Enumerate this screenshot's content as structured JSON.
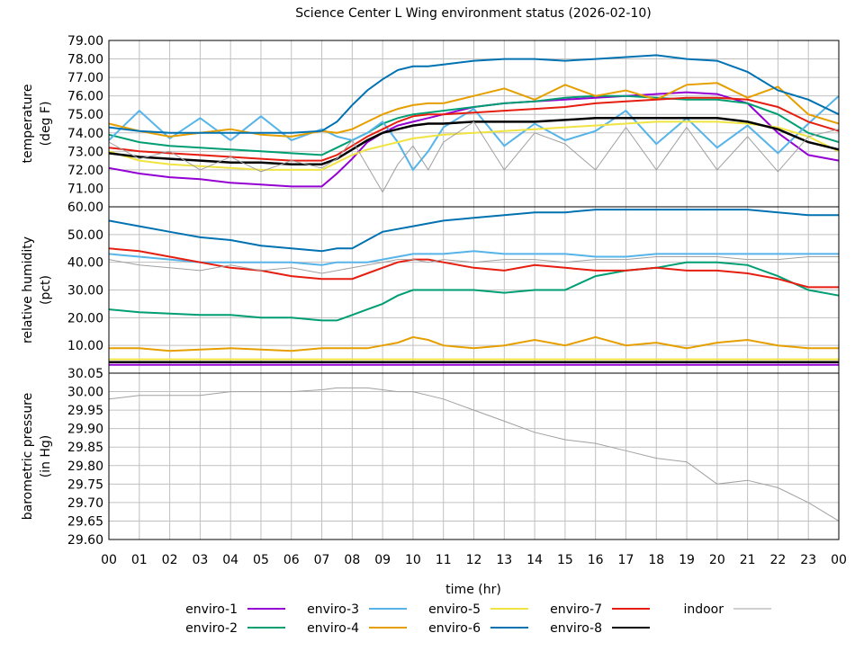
{
  "title": "Science Center L Wing environment status (2026-02-10)",
  "xlabel": "time (hr)",
  "x_ticks": [
    "00",
    "01",
    "02",
    "03",
    "04",
    "05",
    "06",
    "07",
    "08",
    "09",
    "10",
    "11",
    "12",
    "13",
    "14",
    "15",
    "16",
    "17",
    "18",
    "19",
    "20",
    "21",
    "22",
    "23",
    "00"
  ],
  "legend": [
    {
      "name": "enviro-1",
      "color": "#9400d3"
    },
    {
      "name": "enviro-2",
      "color": "#009e73"
    },
    {
      "name": "enviro-3",
      "color": "#56b4e9"
    },
    {
      "name": "enviro-4",
      "color": "#e69f00"
    },
    {
      "name": "enviro-5",
      "color": "#f0e442"
    },
    {
      "name": "enviro-6",
      "color": "#0072b2"
    },
    {
      "name": "enviro-7",
      "color": "#e51e10"
    },
    {
      "name": "enviro-8",
      "color": "#000000"
    },
    {
      "name": "indoor",
      "color": "#a0a0a0"
    }
  ],
  "chart_data": [
    {
      "type": "line",
      "ylabel": [
        "temperature",
        "(deg F)"
      ],
      "ylim": [
        70.0,
        79.0
      ],
      "y_ticks": [
        "71.00",
        "72.00",
        "73.00",
        "74.00",
        "75.00",
        "76.00",
        "77.00",
        "78.00",
        "79.00"
      ],
      "x": [
        0,
        1,
        2,
        3,
        4,
        5,
        6,
        7,
        7.5,
        8,
        8.5,
        9,
        9.5,
        10,
        10.5,
        11,
        12,
        13,
        14,
        15,
        16,
        17,
        18,
        19,
        20,
        21,
        22,
        23,
        24
      ],
      "series": [
        {
          "name": "enviro-1",
          "values": [
            72.1,
            71.8,
            71.6,
            71.5,
            71.3,
            71.2,
            71.1,
            71.1,
            71.8,
            72.6,
            73.5,
            74.0,
            74.4,
            74.6,
            74.8,
            75.0,
            75.4,
            75.6,
            75.7,
            75.8,
            75.9,
            76.0,
            76.1,
            76.2,
            76.1,
            75.6,
            74.0,
            72.8,
            72.5
          ]
        },
        {
          "name": "enviro-2",
          "values": [
            73.9,
            73.5,
            73.3,
            73.2,
            73.1,
            73.0,
            72.9,
            72.8,
            73.2,
            73.6,
            74.0,
            74.5,
            74.8,
            75.0,
            75.1,
            75.2,
            75.4,
            75.6,
            75.7,
            75.9,
            76.0,
            76.0,
            75.9,
            75.8,
            75.8,
            75.6,
            75.0,
            74.0,
            73.5
          ]
        },
        {
          "name": "enviro-3",
          "values": [
            73.6,
            75.2,
            73.7,
            74.8,
            73.6,
            74.9,
            73.6,
            74.2,
            73.8,
            73.6,
            74.0,
            74.6,
            73.5,
            72.0,
            73.0,
            74.3,
            75.3,
            73.3,
            74.5,
            73.6,
            74.1,
            75.2,
            73.4,
            74.8,
            73.2,
            74.4,
            72.9,
            74.5,
            76.0
          ]
        },
        {
          "name": "enviro-4",
          "values": [
            74.5,
            74.1,
            73.8,
            74.0,
            74.2,
            73.9,
            73.8,
            74.1,
            74.0,
            74.2,
            74.6,
            75.0,
            75.3,
            75.5,
            75.6,
            75.6,
            76.0,
            76.4,
            75.8,
            76.6,
            76.0,
            76.3,
            75.8,
            76.6,
            76.7,
            75.9,
            76.5,
            75.0,
            74.5
          ]
        },
        {
          "name": "enviro-5",
          "values": [
            73.0,
            72.5,
            72.3,
            72.2,
            72.1,
            72.0,
            72.0,
            72.0,
            72.4,
            72.8,
            73.1,
            73.3,
            73.5,
            73.7,
            73.8,
            73.9,
            74.0,
            74.1,
            74.2,
            74.3,
            74.4,
            74.5,
            74.6,
            74.6,
            74.6,
            74.5,
            74.3,
            73.8,
            73.0
          ]
        },
        {
          "name": "enviro-6",
          "values": [
            74.3,
            74.1,
            74.0,
            74.0,
            74.0,
            74.0,
            74.0,
            74.1,
            74.6,
            75.5,
            76.3,
            76.9,
            77.4,
            77.6,
            77.6,
            77.7,
            77.9,
            78.0,
            78.0,
            77.9,
            78.0,
            78.1,
            78.2,
            78.0,
            77.9,
            77.3,
            76.3,
            75.8,
            75.0
          ]
        },
        {
          "name": "enviro-7",
          "values": [
            73.2,
            73.0,
            72.9,
            72.8,
            72.7,
            72.6,
            72.5,
            72.5,
            72.8,
            73.3,
            73.8,
            74.2,
            74.6,
            74.9,
            75.0,
            75.0,
            75.1,
            75.2,
            75.3,
            75.4,
            75.6,
            75.7,
            75.8,
            75.9,
            75.9,
            75.8,
            75.4,
            74.6,
            74.1
          ]
        },
        {
          "name": "enviro-8",
          "values": [
            72.9,
            72.7,
            72.6,
            72.5,
            72.4,
            72.4,
            72.3,
            72.3,
            72.6,
            73.1,
            73.6,
            74.0,
            74.2,
            74.4,
            74.5,
            74.5,
            74.6,
            74.6,
            74.6,
            74.7,
            74.8,
            74.8,
            74.8,
            74.8,
            74.8,
            74.6,
            74.2,
            73.5,
            73.1
          ]
        },
        {
          "name": "indoor",
          "values": [
            73.5,
            72.6,
            73.0,
            72.0,
            72.7,
            71.9,
            72.5,
            72.1,
            72.6,
            73.6,
            72.2,
            70.8,
            72.3,
            73.3,
            72.0,
            73.5,
            74.6,
            72.0,
            74.0,
            73.4,
            72.0,
            74.3,
            72.0,
            74.3,
            72.0,
            73.8,
            71.9,
            73.8,
            74.2
          ]
        }
      ]
    },
    {
      "type": "line",
      "ylabel": [
        "relative humidity",
        "(pct)"
      ],
      "ylim": [
        0,
        60
      ],
      "y_ticks": [
        "10.00",
        "20.00",
        "30.00",
        "40.00",
        "50.00",
        "60.00"
      ],
      "x": [
        0,
        1,
        2,
        3,
        4,
        5,
        6,
        7,
        7.5,
        8,
        8.5,
        9,
        9.5,
        10,
        10.5,
        11,
        12,
        13,
        14,
        15,
        16,
        17,
        18,
        19,
        20,
        21,
        22,
        23,
        24
      ],
      "series": [
        {
          "name": "enviro-1",
          "values": [
            3,
            3,
            3,
            3,
            3,
            3,
            3,
            3,
            3,
            3,
            3,
            3,
            3,
            3,
            3,
            3,
            3,
            3,
            3,
            3,
            3,
            3,
            3,
            3,
            3,
            3,
            3,
            3,
            3
          ]
        },
        {
          "name": "enviro-2",
          "values": [
            23,
            22,
            21.5,
            21,
            21,
            20,
            20,
            19,
            19,
            21,
            23,
            25,
            28,
            30,
            30,
            30,
            30,
            29,
            30,
            30,
            35,
            37,
            38,
            40,
            40,
            39,
            35,
            30,
            28
          ]
        },
        {
          "name": "enviro-3",
          "values": [
            43,
            42,
            41,
            40,
            40,
            40,
            40,
            39,
            40,
            40,
            40,
            41,
            42,
            43,
            43,
            43,
            44,
            43,
            43,
            43,
            42,
            42,
            43,
            43,
            43,
            43,
            43,
            43,
            43
          ]
        },
        {
          "name": "enviro-4",
          "values": [
            9,
            9,
            8,
            8.5,
            9,
            8.5,
            8,
            9,
            9,
            9,
            9,
            10,
            11,
            13,
            12,
            10,
            9,
            10,
            12,
            10,
            13,
            10,
            11,
            9,
            11,
            12,
            10,
            9,
            9
          ]
        },
        {
          "name": "enviro-5",
          "values": [
            5,
            5,
            5,
            5,
            5,
            5,
            5,
            5,
            5,
            5,
            5,
            5,
            5,
            5,
            5,
            5,
            5,
            5,
            5,
            5,
            5,
            5,
            5,
            5,
            5,
            5,
            5,
            5,
            5
          ]
        },
        {
          "name": "enviro-6",
          "values": [
            55,
            53,
            51,
            49,
            48,
            46,
            45,
            44,
            45,
            45,
            48,
            51,
            52,
            53,
            54,
            55,
            56,
            57,
            58,
            58,
            59,
            59,
            59,
            59,
            59,
            59,
            58,
            57,
            57
          ]
        },
        {
          "name": "enviro-7",
          "values": [
            45,
            44,
            42,
            40,
            38,
            37,
            35,
            34,
            34,
            34,
            36,
            38,
            40,
            41,
            41,
            40,
            38,
            37,
            39,
            38,
            37,
            37,
            38,
            37,
            37,
            36,
            34,
            31,
            31
          ]
        },
        {
          "name": "enviro-8",
          "values": [
            4,
            4,
            4,
            4,
            4,
            4,
            4,
            4,
            4,
            4,
            4,
            4,
            4,
            4,
            4,
            4,
            4,
            4,
            4,
            4,
            4,
            4,
            4,
            4,
            4,
            4,
            4,
            4,
            4
          ]
        },
        {
          "name": "indoor",
          "values": [
            41,
            39,
            38,
            37,
            39,
            37,
            38,
            36,
            37,
            38,
            39,
            40,
            41,
            41,
            40,
            41,
            40,
            41,
            41,
            40,
            41,
            41,
            42,
            42,
            42,
            41,
            41,
            42,
            42
          ]
        }
      ]
    },
    {
      "type": "line",
      "ylabel": [
        "barometric pressure",
        "(in Hg)"
      ],
      "ylim": [
        29.6,
        30.05
      ],
      "y_ticks": [
        "29.60",
        "29.65",
        "29.70",
        "29.75",
        "29.80",
        "29.85",
        "29.90",
        "29.95",
        "30.00",
        "30.05"
      ],
      "x": [
        0,
        1,
        2,
        3,
        4,
        5,
        6,
        7,
        7.5,
        8,
        8.5,
        9,
        9.5,
        10,
        10.5,
        11,
        12,
        13,
        14,
        15,
        16,
        17,
        18,
        19,
        20,
        21,
        22,
        23,
        24
      ],
      "series": [
        {
          "name": "indoor",
          "values": [
            29.98,
            29.99,
            29.99,
            29.99,
            30.0,
            30.0,
            30.0,
            30.005,
            30.01,
            30.01,
            30.01,
            30.005,
            30.0,
            30.0,
            29.99,
            29.98,
            29.95,
            29.92,
            29.89,
            29.87,
            29.86,
            29.84,
            29.82,
            29.81,
            29.75,
            29.76,
            29.74,
            29.7,
            29.65
          ]
        }
      ]
    }
  ]
}
